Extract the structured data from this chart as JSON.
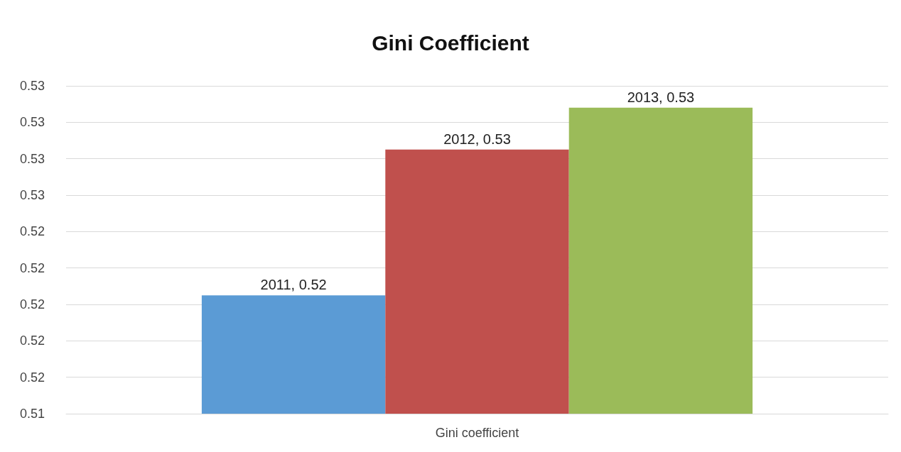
{
  "chart_data": {
    "type": "bar",
    "title": "Gini Coefficient",
    "categories": [
      "Gini coefficient"
    ],
    "series": [
      {
        "name": "2011",
        "color": "#5b9bd5",
        "values": [
          0.5205
        ],
        "value_labels": [
          ", 0.52"
        ]
      },
      {
        "name": "2012",
        "color": "#c0504d",
        "values": [
          0.5285
        ],
        "value_labels": [
          ", 0.53"
        ]
      },
      {
        "name": "2013",
        "color": "#9bbb59",
        "values": [
          0.5308
        ],
        "value_labels": [
          ", 0.53"
        ]
      }
    ],
    "ylim": [
      0.514,
      0.532
    ],
    "yticks": [
      {
        "value": 0.514,
        "label": "0.51"
      },
      {
        "value": 0.516,
        "label": "0.52"
      },
      {
        "value": 0.518,
        "label": "0.52"
      },
      {
        "value": 0.52,
        "label": "0.52"
      },
      {
        "value": 0.522,
        "label": "0.52"
      },
      {
        "value": 0.524,
        "label": "0.52"
      },
      {
        "value": 0.526,
        "label": "0.53"
      },
      {
        "value": 0.528,
        "label": "0.53"
      },
      {
        "value": 0.53,
        "label": "0.53"
      },
      {
        "value": 0.532,
        "label": "0.53"
      }
    ],
    "grid": "y",
    "legend": false
  }
}
